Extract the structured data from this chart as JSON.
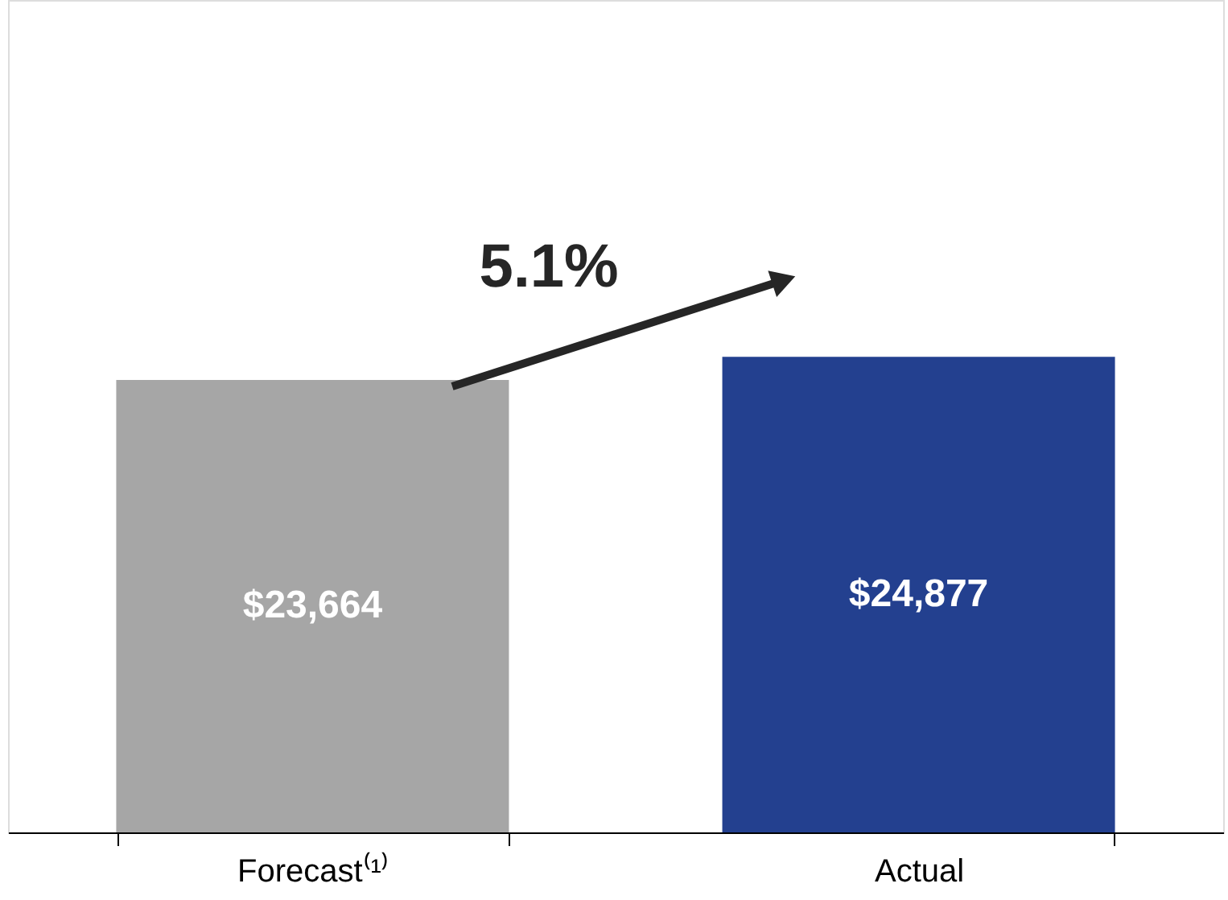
{
  "chart_data": {
    "type": "bar",
    "categories": [
      "Forecast⁽¹⁾",
      "Actual"
    ],
    "values": [
      23664,
      24877
    ],
    "colors": [
      "#a6a6a6",
      "#23408f"
    ],
    "value_labels": [
      "$23,664",
      "$24,877"
    ],
    "annotations": [
      "5.1%"
    ]
  }
}
